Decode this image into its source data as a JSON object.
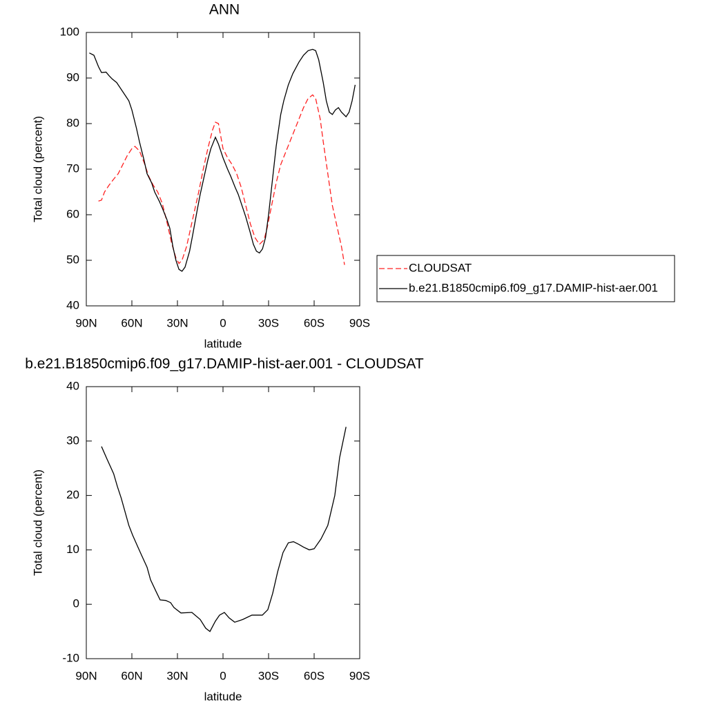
{
  "chart_data": [
    {
      "type": "line",
      "title": "ANN",
      "x_label": "latitude",
      "y_label": "Total cloud (percent)",
      "xlim": [
        90,
        -90
      ],
      "xticks": [
        {
          "value": 90,
          "label": "90N"
        },
        {
          "value": 60,
          "label": "60N"
        },
        {
          "value": 30,
          "label": "30N"
        },
        0,
        {
          "value": -30,
          "label": "30S"
        },
        {
          "value": -60,
          "label": "60S"
        },
        {
          "value": -90,
          "label": "90S"
        }
      ],
      "ylim": [
        40,
        100
      ],
      "yticks": [
        40,
        50,
        60,
        70,
        80,
        90,
        100
      ],
      "legend": "right",
      "series": [
        {
          "name": "CLOUDSAT",
          "color": "#ff2020",
          "linestyle": "dashed",
          "x": [
            82,
            80,
            78,
            75,
            72,
            69,
            66,
            63,
            60,
            58,
            55,
            52,
            49,
            46,
            43,
            40,
            37,
            34,
            31,
            29,
            27,
            24,
            22,
            19,
            16,
            13,
            10,
            7,
            5,
            3,
            0,
            -3,
            -6,
            -9,
            -12,
            -15,
            -18,
            -21,
            -24,
            -27,
            -29,
            -32,
            -35,
            -38,
            -41,
            -44,
            -47,
            -50,
            -53,
            -56,
            -59,
            -61,
            -64,
            -66,
            -69,
            -72,
            -75,
            -78,
            -80
          ],
          "values": [
            63,
            63.2,
            65,
            66.5,
            67.8,
            69,
            71,
            73,
            74.5,
            75,
            74,
            71.5,
            68.5,
            66.5,
            65,
            62.5,
            58.5,
            54,
            50.5,
            49.3,
            50,
            53,
            56,
            60.5,
            65,
            70,
            74.5,
            78.5,
            80.3,
            80,
            74.5,
            72.5,
            71,
            69,
            66,
            62,
            58,
            55,
            53.5,
            54.5,
            57,
            62,
            67,
            71,
            73.5,
            76,
            78.5,
            81,
            83.5,
            85.5,
            86.3,
            85.5,
            81,
            76,
            69,
            62,
            57.5,
            53,
            49
          ]
        },
        {
          "name": "b.e21.B1850cmip6.f09_g17.DAMIP-hist-aer.001",
          "color": "#000000",
          "linestyle": "solid",
          "x": [
            88,
            85,
            82,
            80,
            77,
            75,
            73,
            70,
            67,
            64,
            62,
            60,
            57,
            55,
            52,
            50,
            47,
            45,
            42,
            40,
            37,
            35,
            33,
            31,
            29,
            27,
            25,
            22,
            20,
            17,
            15,
            12,
            10,
            8,
            5,
            3,
            0,
            -3,
            -5,
            -8,
            -10,
            -13,
            -15,
            -18,
            -20,
            -22,
            -24,
            -26,
            -28,
            -30,
            -32,
            -35,
            -38,
            -40,
            -43,
            -46,
            -50,
            -53,
            -56,
            -59,
            -61,
            -63,
            -66,
            -68,
            -70,
            -72,
            -74,
            -76,
            -78,
            -81,
            -83,
            -85,
            -87
          ],
          "values": [
            95.5,
            95,
            92.5,
            91.2,
            91.3,
            90.5,
            89.8,
            89,
            87.5,
            86,
            85,
            83,
            79,
            76,
            72,
            69,
            67,
            65,
            63,
            61.5,
            59,
            57,
            53,
            50,
            48,
            47.6,
            48.5,
            52,
            55.5,
            61,
            64.5,
            69,
            72,
            74.5,
            77,
            75.5,
            72.5,
            70,
            68.5,
            66,
            64.5,
            61.5,
            59.5,
            56,
            53.5,
            52,
            51.6,
            52.5,
            55,
            60,
            66,
            75,
            82,
            85,
            88.5,
            91,
            93.5,
            95,
            96,
            96.3,
            96,
            94,
            89,
            85,
            82.5,
            82,
            83,
            83.5,
            82.5,
            81.5,
            82.5,
            85,
            88.5
          ]
        }
      ]
    },
    {
      "type": "line",
      "title": "b.e21.B1850cmip6.f09_g17.DAMIP-hist-aer.001 - CLOUDSAT",
      "x_label": "latitude",
      "y_label": "Total cloud (percent)",
      "xlim": [
        90,
        -90
      ],
      "xticks": [
        {
          "value": 90,
          "label": "90N"
        },
        {
          "value": 60,
          "label": "60N"
        },
        {
          "value": 30,
          "label": "30N"
        },
        0,
        {
          "value": -30,
          "label": "30S"
        },
        {
          "value": -60,
          "label": "60S"
        },
        {
          "value": -90,
          "label": "90S"
        }
      ],
      "ylim": [
        -10,
        40
      ],
      "yticks": [
        -10,
        0,
        10,
        20,
        30,
        40
      ],
      "color": "#000000",
      "x": [
        80,
        76.4,
        72,
        69.5,
        67,
        65,
        62,
        59.5,
        56,
        53.6,
        50,
        47.7,
        44,
        41.4,
        37.7,
        34.5,
        32.3,
        27.7,
        20.5,
        15,
        11.4,
        8.6,
        5,
        2.3,
        -0.9,
        -4,
        -7.7,
        -13,
        -19,
        -25.9,
        -29.5,
        -32.7,
        -36,
        -39.5,
        -43,
        -46.4,
        -50,
        -53,
        -56.8,
        -60,
        -64.5,
        -69,
        -73.6,
        -76.8,
        -81
      ],
      "values": [
        29,
        26.7,
        24,
        21.6,
        19.5,
        17.5,
        14.5,
        12.7,
        10.5,
        9,
        6.8,
        4.5,
        2.3,
        0.8,
        0.7,
        0.3,
        -0.6,
        -1.6,
        -1.5,
        -2.8,
        -4.4,
        -5,
        -3.1,
        -2,
        -1.5,
        -2.5,
        -3.3,
        -2.8,
        -2,
        -2,
        -1,
        2,
        6,
        9.5,
        11.3,
        11.5,
        11,
        10.5,
        10,
        10.2,
        12,
        14.5,
        20,
        27,
        32.6
      ]
    }
  ]
}
